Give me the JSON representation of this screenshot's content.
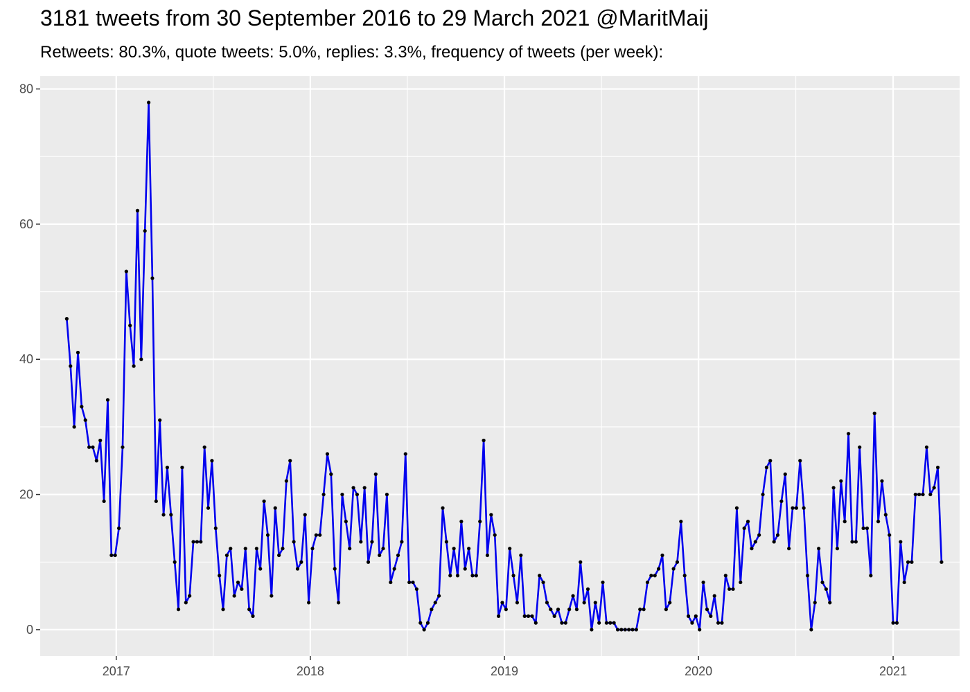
{
  "title": "3181 tweets from 30 September 2016 to 29 March 2021 @MaritMaij",
  "subtitle": "Retweets: 80.3%, quote tweets: 5.0%, replies: 3.3%, frequency of tweets (per week):",
  "colors": {
    "panel": "#ebebeb",
    "grid": "#ffffff",
    "line": "#0000ee",
    "point": "#000000",
    "tick_text": "#4d4d4d"
  },
  "chart_data": {
    "type": "line",
    "title": "3181 tweets from 30 September 2016 to 29 March 2021 @MaritMaij",
    "subtitle": "Retweets: 80.3%, quote tweets: 5.0%, replies: 3.3%, frequency of tweets (per week):",
    "xlabel": "",
    "ylabel": "",
    "x_start_date": "2016-09-30",
    "x_step": "1 week",
    "ylim": [
      -3.9,
      81.9
    ],
    "xlim": [
      "2016-08-11",
      "2021-05-06"
    ],
    "x_ticks": [
      "2017",
      "2018",
      "2019",
      "2020",
      "2021"
    ],
    "x_tick_dates": [
      "2017-01-01",
      "2018-01-01",
      "2019-01-01",
      "2020-01-01",
      "2021-01-01"
    ],
    "y_ticks": [
      0,
      20,
      40,
      60,
      80
    ],
    "grid": true,
    "legend": "none",
    "series": [
      {
        "values": [
          46,
          39,
          30,
          41,
          33,
          31,
          27,
          27,
          25,
          28,
          19,
          34,
          11,
          11,
          15,
          27,
          53,
          45,
          39,
          62,
          40,
          59,
          78,
          52,
          19,
          31,
          17,
          24,
          17,
          10,
          3,
          24,
          4,
          5,
          13,
          13,
          13,
          27,
          18,
          25,
          15,
          8,
          3,
          11,
          12,
          5,
          7,
          6,
          12,
          3,
          2,
          12,
          9,
          19,
          14,
          5,
          18,
          11,
          12,
          22,
          25,
          13,
          9,
          10,
          17,
          4,
          12,
          14,
          14,
          20,
          26,
          23,
          9,
          4,
          20,
          16,
          12,
          21,
          20,
          13,
          21,
          10,
          13,
          23,
          11,
          12,
          20,
          7,
          9,
          11,
          13,
          26,
          7,
          7,
          6,
          1,
          0,
          1,
          3,
          4,
          5,
          18,
          13,
          8,
          12,
          8,
          16,
          9,
          12,
          8,
          8,
          16,
          28,
          11,
          17,
          14,
          2,
          4,
          3,
          12,
          8,
          4,
          11,
          2,
          2,
          2,
          1,
          8,
          7,
          4,
          3,
          2,
          3,
          1,
          1,
          3,
          5,
          3,
          10,
          4,
          6,
          0,
          4,
          1,
          7,
          1,
          1,
          1,
          0,
          0,
          0,
          0,
          0,
          0,
          3,
          3,
          7,
          8,
          8,
          9,
          11,
          3,
          4,
          9,
          10,
          16,
          8,
          2,
          1,
          2,
          0,
          7,
          3,
          2,
          5,
          1,
          1,
          8,
          6,
          6,
          18,
          7,
          15,
          16,
          12,
          13,
          14,
          20,
          24,
          25,
          13,
          14,
          19,
          23,
          12,
          18,
          18,
          25,
          18,
          8,
          0,
          4,
          12,
          7,
          6,
          4,
          21,
          12,
          22,
          16,
          29,
          13,
          13,
          27,
          15,
          15,
          8,
          32,
          16,
          22,
          17,
          14,
          1,
          1,
          13,
          7,
          10,
          10,
          20,
          20,
          20,
          27,
          20,
          21,
          24,
          10
        ]
      }
    ]
  }
}
